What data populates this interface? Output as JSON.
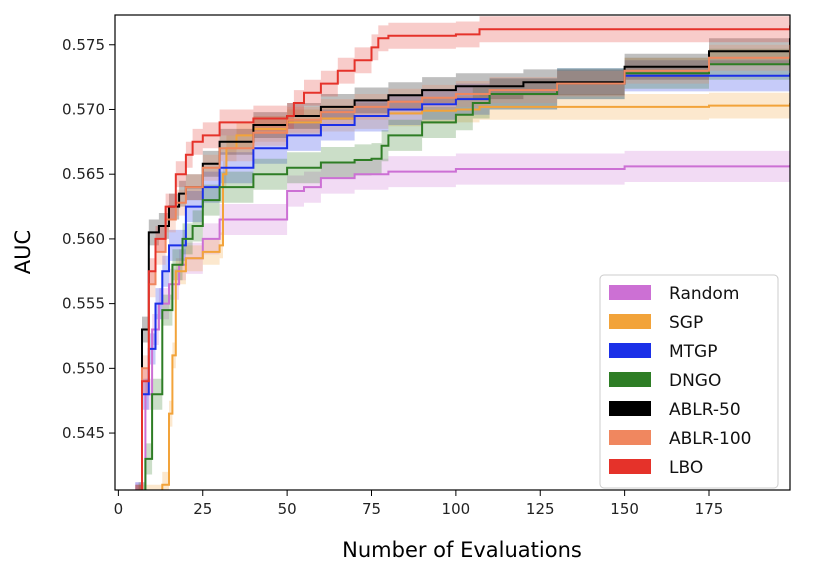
{
  "chart_data": {
    "type": "line",
    "title": "",
    "xlabel": "Number of Evaluations",
    "ylabel": "AUC",
    "xlim": [
      -1,
      199
    ],
    "ylim": [
      0.5406,
      0.5773
    ],
    "xticks": [
      0,
      25,
      50,
      75,
      100,
      125,
      150,
      175
    ],
    "yticks": [
      0.545,
      0.55,
      0.555,
      0.56,
      0.565,
      0.57,
      0.575
    ],
    "xtick_labels": [
      "0",
      "25",
      "50",
      "75",
      "100",
      "125",
      "150",
      "175"
    ],
    "ytick_labels": [
      "0.545",
      "0.550",
      "0.555",
      "0.560",
      "0.565",
      "0.570",
      "0.575"
    ],
    "grid": false,
    "legend_position": "lower-right",
    "series": [
      {
        "name": "Random",
        "color": "#cc70d4",
        "x": [
          5,
          8,
          10,
          12,
          15,
          18,
          20,
          25,
          30,
          40,
          50,
          55,
          60,
          70,
          80,
          100,
          150,
          199
        ],
        "y": [
          0.54,
          0.548,
          0.553,
          0.555,
          0.5565,
          0.558,
          0.5585,
          0.56,
          0.5615,
          0.5615,
          0.5637,
          0.564,
          0.5647,
          0.565,
          0.5652,
          0.5654,
          0.5656,
          0.5657
        ],
        "band": 0.0012
      },
      {
        "name": "SGP",
        "color": "#f2a33a",
        "x": [
          6,
          10,
          13,
          15,
          16,
          17,
          20,
          25,
          30,
          31,
          32,
          35,
          40,
          50,
          60,
          70,
          80,
          90,
          100,
          107,
          150,
          175,
          199
        ],
        "y": [
          0.54,
          0.54,
          0.541,
          0.5465,
          0.551,
          0.5575,
          0.5585,
          0.559,
          0.5595,
          0.565,
          0.567,
          0.568,
          0.5685,
          0.569,
          0.5693,
          0.5695,
          0.5697,
          0.5699,
          0.57,
          0.5702,
          0.5702,
          0.5703,
          0.5705
        ],
        "band": 0.001
      },
      {
        "name": "MTGP",
        "color": "#1b30e8",
        "x": [
          5,
          7,
          9,
          11,
          13,
          15,
          20,
          25,
          30,
          40,
          50,
          60,
          70,
          80,
          90,
          100,
          110,
          130,
          150,
          199
        ],
        "y": [
          0.54,
          0.548,
          0.5515,
          0.555,
          0.5575,
          0.5595,
          0.5625,
          0.564,
          0.5655,
          0.567,
          0.568,
          0.5688,
          0.5695,
          0.57,
          0.5704,
          0.5708,
          0.5712,
          0.572,
          0.5726,
          0.5728
        ],
        "band": 0.0012
      },
      {
        "name": "DNGO",
        "color": "#2e7d25",
        "x": [
          6,
          8,
          10,
          13,
          16,
          19,
          22,
          25,
          30,
          40,
          50,
          60,
          70,
          75,
          78,
          80,
          90,
          100,
          105,
          110,
          130,
          150,
          175,
          199
        ],
        "y": [
          0.54,
          0.543,
          0.548,
          0.5545,
          0.558,
          0.56,
          0.561,
          0.563,
          0.564,
          0.565,
          0.5655,
          0.5659,
          0.5661,
          0.5662,
          0.5672,
          0.568,
          0.569,
          0.5696,
          0.5705,
          0.5712,
          0.572,
          0.5728,
          0.5735,
          0.5742
        ],
        "band": 0.0012
      },
      {
        "name": "ABLR-50",
        "color": "#000000",
        "x": [
          5,
          7,
          9,
          12,
          15,
          18,
          20,
          25,
          30,
          40,
          50,
          60,
          70,
          80,
          90,
          100,
          120,
          150,
          175,
          199
        ],
        "y": [
          0.54,
          0.553,
          0.5605,
          0.561,
          0.5625,
          0.5635,
          0.564,
          0.5658,
          0.5675,
          0.5688,
          0.5695,
          0.5702,
          0.5707,
          0.5711,
          0.5715,
          0.5718,
          0.5721,
          0.5733,
          0.5745,
          0.5755
        ],
        "band": 0.001
      },
      {
        "name": "ABLR-100",
        "color": "#f0875f",
        "x": [
          5,
          7,
          9,
          11,
          14,
          17,
          20,
          25,
          30,
          40,
          50,
          60,
          70,
          80,
          90,
          100,
          110,
          130,
          150,
          175,
          199
        ],
        "y": [
          0.54,
          0.55,
          0.5565,
          0.559,
          0.5615,
          0.5628,
          0.564,
          0.5655,
          0.567,
          0.5682,
          0.5692,
          0.5698,
          0.5702,
          0.5706,
          0.5709,
          0.5712,
          0.5715,
          0.572,
          0.573,
          0.574,
          0.575
        ],
        "band": 0.001
      },
      {
        "name": "LBO",
        "color": "#e5322a",
        "x": [
          5,
          7,
          9,
          11,
          14,
          17,
          20,
          22,
          25,
          30,
          40,
          50,
          52,
          55,
          60,
          65,
          70,
          75,
          77,
          80,
          100,
          107,
          150,
          175,
          199
        ],
        "y": [
          0.54,
          0.549,
          0.5575,
          0.56,
          0.5625,
          0.565,
          0.5665,
          0.5675,
          0.568,
          0.569,
          0.5693,
          0.5695,
          0.5705,
          0.5713,
          0.572,
          0.573,
          0.5738,
          0.5748,
          0.5755,
          0.5757,
          0.5758,
          0.5762,
          0.5762,
          0.5762,
          0.5765
        ],
        "band": 0.001
      }
    ]
  }
}
